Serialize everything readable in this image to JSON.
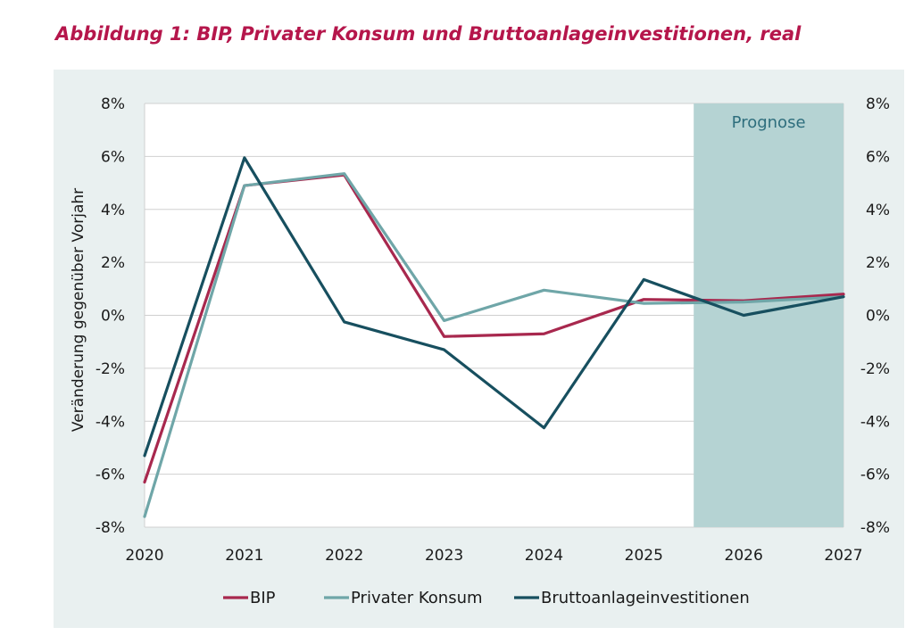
{
  "figure": {
    "title": "Abbildung 1: BIP, Privater Konsum und Bruttoanlageinvestitionen, real"
  },
  "colors": {
    "title": "#b5164b",
    "panel_background": "#e9f0f0",
    "plot_background": "#ffffff",
    "forecast_shade": "#b5d3d3",
    "forecast_text": "#2e6e7d",
    "grid": "#d0d0d0"
  },
  "chart_data": {
    "type": "line",
    "title": "",
    "xlabel": "",
    "ylabel": "Veränderung gegenüber Vorjahr",
    "x": [
      2020,
      2021,
      2022,
      2023,
      2024,
      2025,
      2026,
      2027
    ],
    "x_tick_labels": [
      "2020",
      "2021",
      "2022",
      "2023",
      "2024",
      "2025",
      "2026",
      "2027"
    ],
    "xlim": [
      2020,
      2027
    ],
    "ylim": [
      -8,
      8
    ],
    "y_ticks": [
      -8,
      -6,
      -4,
      -2,
      0,
      2,
      4,
      6,
      8
    ],
    "y_tick_labels": [
      "-8%",
      "-6%",
      "-4%",
      "-2%",
      "0%",
      "2%",
      "4%",
      "6%",
      "8%"
    ],
    "y_axis_sides": "both",
    "grid": "horizontal",
    "legend_position": "bottom",
    "forecast_region": {
      "label": "Prognose",
      "x_start": 2025.5,
      "x_end": 2027
    },
    "series": [
      {
        "name": "BIP",
        "color": "#a8284e",
        "values": [
          -6.3,
          4.9,
          5.3,
          -0.8,
          -0.7,
          0.6,
          0.55,
          0.8
        ]
      },
      {
        "name": "Privater Konsum",
        "color": "#6fa6a8",
        "values": [
          -7.6,
          4.9,
          5.35,
          -0.2,
          0.95,
          0.45,
          0.5,
          0.7
        ]
      },
      {
        "name": "Bruttoanlageinvestitionen",
        "color": "#174f5f",
        "values": [
          -5.3,
          5.95,
          -0.25,
          -1.3,
          -4.25,
          1.35,
          0.0,
          0.7
        ]
      }
    ]
  }
}
